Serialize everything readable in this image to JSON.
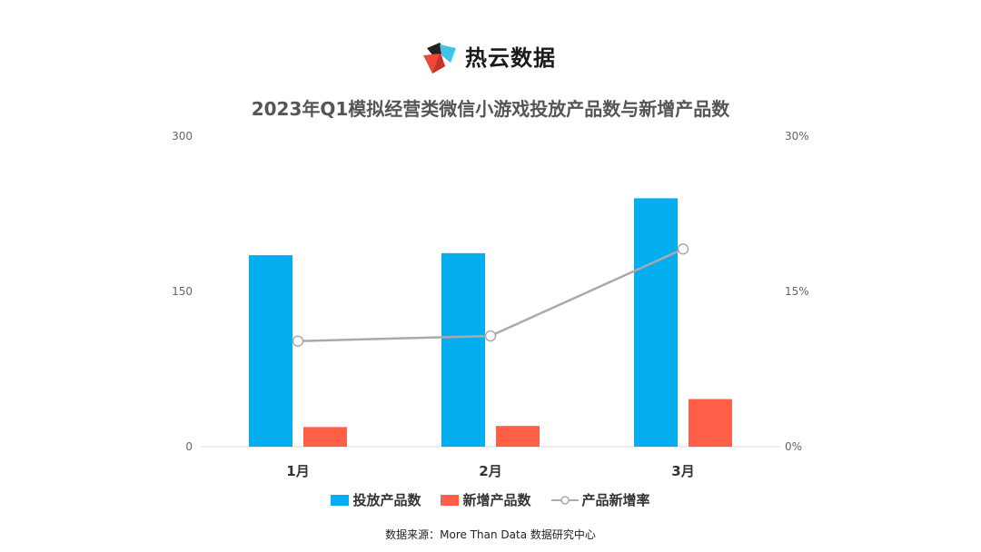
{
  "header": {
    "brand": "热云数据"
  },
  "colors": {
    "series1": "#05AEEE",
    "series2": "#FF5F46",
    "line": "#AAAAAA",
    "axis_text": "#666666"
  },
  "chart_data": {
    "type": "bar",
    "title": "2023年Q1模拟经营类微信小游戏投放产品数与新增产品数",
    "categories": [
      "1月",
      "2月",
      "3月"
    ],
    "series": [
      {
        "name": "投放产品数",
        "type": "bar",
        "axis": "left",
        "values": [
          185,
          187,
          240
        ]
      },
      {
        "name": "新增产品数",
        "type": "bar",
        "axis": "left",
        "values": [
          19,
          20,
          46
        ]
      }
    ],
    "line_series": {
      "name": "产品新增率",
      "type": "line",
      "axis": "right",
      "values": [
        10.2,
        10.7,
        19.1
      ]
    },
    "ylim_left": [
      0,
      300
    ],
    "ylim_right": [
      0,
      30
    ],
    "left_ticks": [
      "0",
      "150",
      "300"
    ],
    "right_ticks": [
      "0%",
      "15%",
      "30%"
    ],
    "grid": false,
    "legend_position": "bottom"
  },
  "footer": {
    "source": "数据来源：More Than Data 数据研究中心"
  }
}
